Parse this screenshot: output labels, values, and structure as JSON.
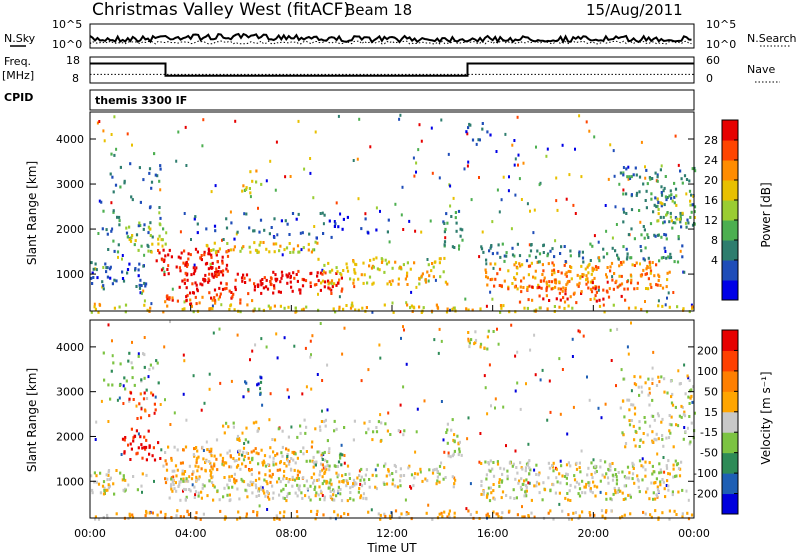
{
  "header": {
    "title": "Christmas Valley West (fitACF)",
    "beam": "Beam 18",
    "date": "15/Aug/2011"
  },
  "params_panel": {
    "nsky_label": "N.Sky",
    "nsearch_label": "N.Search",
    "freq_label_line1": "Freq.",
    "freq_label_line2": "[MHz]",
    "nave_label": "Nave",
    "cpid_label": "CPID",
    "cpid_value": "themis 3300 IF",
    "nsky_ticks": [
      "10^5",
      "10^0"
    ],
    "nsearch_ticks": [
      "10^5",
      "10^0"
    ],
    "freq_ticks": [
      "18",
      "8"
    ],
    "nave_ticks": [
      "60",
      "0"
    ],
    "freq_series": {
      "hours": [
        0,
        3,
        3,
        15,
        15,
        24
      ],
      "mhz": [
        15.5,
        15.5,
        10.8,
        10.8,
        15.5,
        15.5
      ]
    },
    "nave_level": 20
  },
  "chart_data": [
    {
      "type": "heatmap",
      "name": "power",
      "xlabel": "",
      "ylabel": "Slant Range [km]",
      "x_range_hours": [
        0,
        24
      ],
      "ylim": [
        180,
        4600
      ],
      "yticks": [
        1000,
        2000,
        3000,
        4000
      ],
      "colorbar": {
        "label": "Power [dB]",
        "ticks": [
          "28",
          "24",
          "20",
          "16",
          "12",
          "8",
          "4"
        ],
        "colors": [
          "#0000e6",
          "#1f4db8",
          "#2e7d6e",
          "#4caf50",
          "#9acd32",
          "#e8c000",
          "#ff8c00",
          "#ff4500",
          "#e60000"
        ]
      },
      "regions": [
        {
          "h0": 0.0,
          "h1": 2.2,
          "r0": 700,
          "r1": 1300,
          "level": 1,
          "density": 0.6
        },
        {
          "h0": 0.4,
          "h1": 2.8,
          "r0": 1500,
          "r1": 3800,
          "level": 2,
          "density": 0.2
        },
        {
          "h0": 1.2,
          "h1": 3.0,
          "r0": 1400,
          "r1": 2200,
          "level": 4,
          "density": 0.35
        },
        {
          "h0": 2.6,
          "h1": 5.5,
          "r0": 1000,
          "r1": 1600,
          "level": 8,
          "density": 0.85
        },
        {
          "h0": 4.2,
          "h1": 9.2,
          "r0": 1500,
          "r1": 1750,
          "level": 5,
          "density": 0.7
        },
        {
          "h0": 3.5,
          "h1": 10.0,
          "r0": 600,
          "r1": 1100,
          "level": 8,
          "density": 0.8
        },
        {
          "h0": 2.8,
          "h1": 6.5,
          "r0": 350,
          "r1": 600,
          "level": 7,
          "density": 0.7
        },
        {
          "h0": 9.0,
          "h1": 14.2,
          "r0": 800,
          "r1": 1400,
          "level": 5,
          "density": 0.6
        },
        {
          "h0": 4.0,
          "h1": 12.0,
          "r0": 1800,
          "r1": 2400,
          "level": 1,
          "density": 0.2
        },
        {
          "h0": 14.0,
          "h1": 14.8,
          "r0": 1600,
          "r1": 2500,
          "level": 2,
          "density": 0.55
        },
        {
          "h0": 15.5,
          "h1": 23.0,
          "r0": 700,
          "r1": 1300,
          "level": 6,
          "density": 0.7
        },
        {
          "h0": 17.0,
          "h1": 21.5,
          "r0": 400,
          "r1": 900,
          "level": 7,
          "density": 0.6
        },
        {
          "h0": 15.5,
          "h1": 23.5,
          "r0": 1300,
          "r1": 1700,
          "level": 2,
          "density": 0.5
        },
        {
          "h0": 21.0,
          "h1": 24.0,
          "r0": 1800,
          "r1": 3400,
          "level": 2,
          "density": 0.45
        },
        {
          "h0": 22.5,
          "h1": 24.0,
          "r0": 2200,
          "r1": 2800,
          "level": 4,
          "density": 0.5
        },
        {
          "h0": 0.0,
          "h1": 24.0,
          "r0": 180,
          "r1": 350,
          "level": 5,
          "density": 0.55
        },
        {
          "h0": 6.0,
          "h1": 6.8,
          "r0": 2800,
          "r1": 3400,
          "level": 5,
          "density": 0.4
        },
        {
          "h0": 14.8,
          "h1": 16.0,
          "r0": 4000,
          "r1": 4400,
          "level": 1,
          "density": 0.4
        }
      ]
    },
    {
      "type": "heatmap",
      "name": "velocity",
      "xlabel": "Time UT",
      "ylabel": "Slant Range [km]",
      "x_range_hours": [
        0,
        24
      ],
      "ylim": [
        180,
        4600
      ],
      "yticks": [
        1000,
        2000,
        3000,
        4000
      ],
      "xticks": [
        "00:00",
        "04:00",
        "08:00",
        "12:00",
        "16:00",
        "20:00",
        "00:00"
      ],
      "colorbar": {
        "label": "Velocity [m s⁻¹]",
        "ticks": [
          "200",
          "100",
          "50",
          "15",
          "-15",
          "-50",
          "-100",
          "-200"
        ],
        "colors": [
          "#0000dc",
          "#1e5fb4",
          "#2e8b57",
          "#7cc342",
          "#c8c8c8",
          "#ffa500",
          "#ff7f00",
          "#ff4000",
          "#e60000"
        ]
      },
      "regions": [
        {
          "h0": 0.0,
          "h1": 2.2,
          "r0": 700,
          "r1": 1300,
          "level": 4,
          "density": 0.6
        },
        {
          "h0": 0.5,
          "h1": 2.8,
          "r0": 2800,
          "r1": 3900,
          "level": 3,
          "density": 0.25
        },
        {
          "h0": 1.2,
          "h1": 2.8,
          "r0": 1500,
          "r1": 2200,
          "level": 8,
          "density": 0.6
        },
        {
          "h0": 1.5,
          "h1": 2.6,
          "r0": 2400,
          "r1": 3100,
          "level": 7,
          "density": 0.4
        },
        {
          "h0": 2.8,
          "h1": 9.5,
          "r0": 1000,
          "r1": 1800,
          "level": 5,
          "density": 0.75
        },
        {
          "h0": 3.0,
          "h1": 11.0,
          "r0": 600,
          "r1": 1100,
          "level": 4,
          "density": 0.8
        },
        {
          "h0": 6.0,
          "h1": 10.0,
          "r0": 1300,
          "r1": 1700,
          "level": 3,
          "density": 0.4
        },
        {
          "h0": 9.0,
          "h1": 14.5,
          "r0": 900,
          "r1": 1400,
          "level": 4,
          "density": 0.6
        },
        {
          "h0": 5.0,
          "h1": 12.5,
          "r0": 1900,
          "r1": 2400,
          "level": 4,
          "density": 0.3
        },
        {
          "h0": 14.0,
          "h1": 14.8,
          "r0": 1500,
          "r1": 2500,
          "level": 4,
          "density": 0.5
        },
        {
          "h0": 15.5,
          "h1": 23.5,
          "r0": 600,
          "r1": 1500,
          "level": 4,
          "density": 0.75
        },
        {
          "h0": 21.0,
          "h1": 24.0,
          "r0": 1800,
          "r1": 3400,
          "level": 4,
          "density": 0.45
        },
        {
          "h0": 0.0,
          "h1": 24.0,
          "r0": 180,
          "r1": 380,
          "level": 5,
          "density": 0.6
        },
        {
          "h0": 6.0,
          "h1": 6.8,
          "r0": 2900,
          "r1": 3400,
          "level": 1,
          "density": 0.5
        },
        {
          "h0": 14.8,
          "h1": 16.0,
          "r0": 3900,
          "r1": 4400,
          "level": 4,
          "density": 0.5
        }
      ]
    }
  ]
}
